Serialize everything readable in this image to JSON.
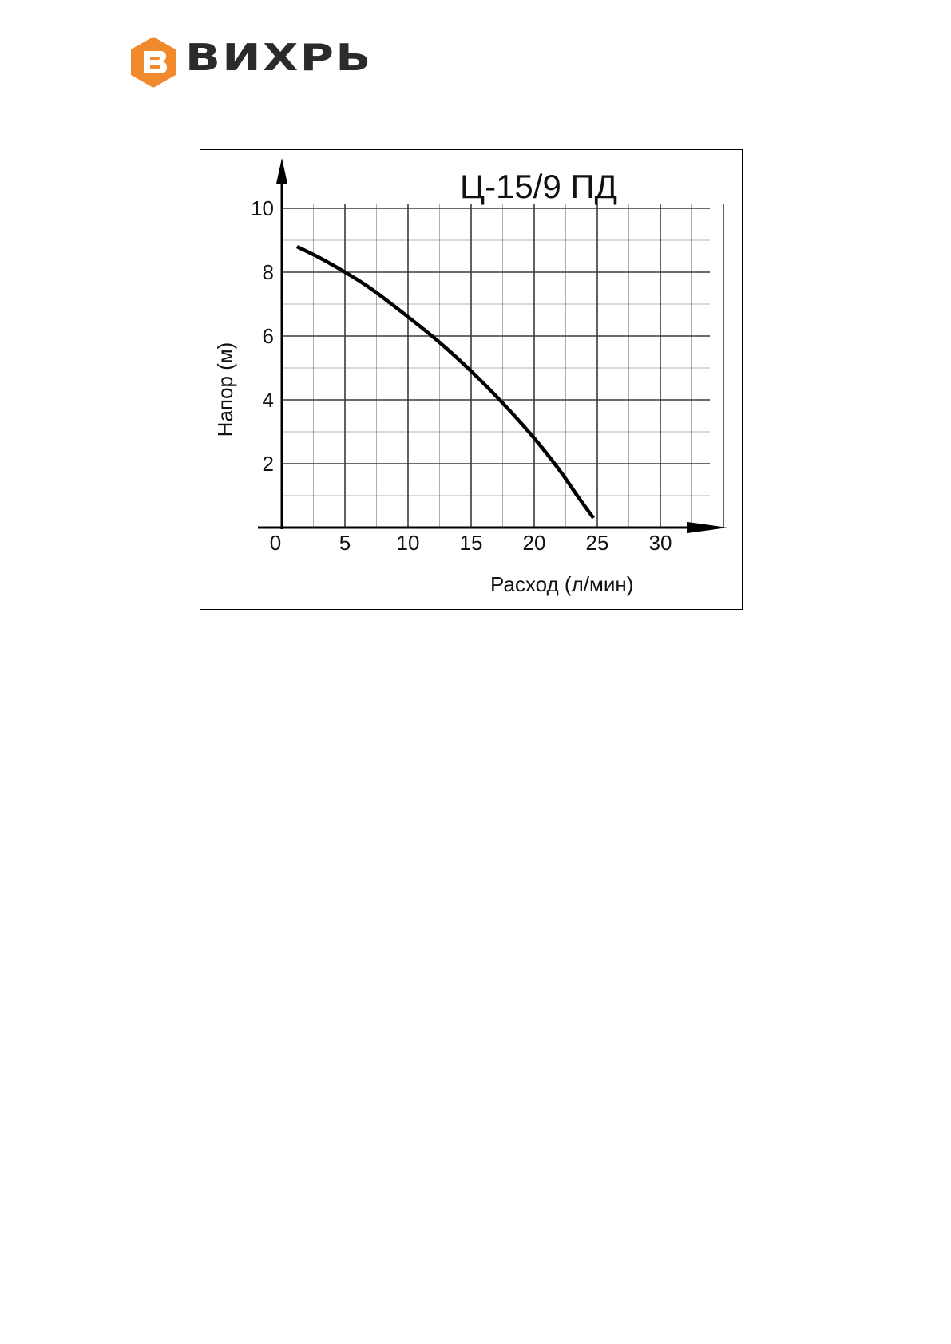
{
  "brand": {
    "name": "ВИХРЬ",
    "accent_color": "#f08a2c",
    "text_color": "#2b2b2b"
  },
  "chart_data": {
    "type": "line",
    "title": "Ц-15/9 ПД",
    "xlabel": "Расход (л/мин)",
    "ylabel": "Напор (м)",
    "xlim": [
      0,
      35
    ],
    "ylim": [
      0,
      10
    ],
    "x_ticks": [
      0,
      5,
      10,
      15,
      20,
      25,
      30
    ],
    "x_tick_labels": [
      "0",
      "5",
      "10",
      "15",
      "20",
      "25",
      "30"
    ],
    "y_ticks": [
      2,
      4,
      6,
      8,
      10
    ],
    "y_tick_labels": [
      "2",
      "4",
      "6",
      "8",
      "10"
    ],
    "grid": true,
    "series": [
      {
        "x": [
          1.2,
          3,
          5,
          7,
          10,
          12.5,
          15,
          17.5,
          20,
          22,
          23.5,
          24.7
        ],
        "y": [
          8.8,
          8.45,
          8.0,
          7.5,
          6.6,
          5.8,
          4.9,
          3.9,
          2.8,
          1.8,
          0.95,
          0.3
        ]
      }
    ]
  }
}
